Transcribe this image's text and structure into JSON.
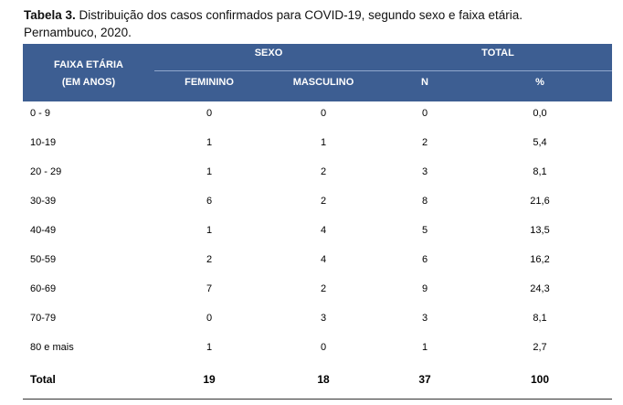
{
  "caption": {
    "label": "Tabela 3.",
    "text": " Distribuição dos casos confirmados para COVID-19, segundo sexo e faixa etária.",
    "line2": "Pernambuco, 2020."
  },
  "header": {
    "age_line1": "FAIXA ETÁRIA",
    "age_line2": "(EM ANOS)",
    "sexo": "SEXO",
    "total": "TOTAL",
    "feminino": "FEMININO",
    "masculino": "MASCULINO",
    "n": "N",
    "pct": "%"
  },
  "rows": [
    {
      "age": "0 - 9",
      "fem": "0",
      "masc": "0",
      "n": "0",
      "pct": "0,0"
    },
    {
      "age": "10-19",
      "fem": "1",
      "masc": "1",
      "n": "2",
      "pct": "5,4"
    },
    {
      "age": "20 - 29",
      "fem": "1",
      "masc": "2",
      "n": "3",
      "pct": "8,1"
    },
    {
      "age": "30-39",
      "fem": "6",
      "masc": "2",
      "n": "8",
      "pct": "21,6"
    },
    {
      "age": "40-49",
      "fem": "1",
      "masc": "4",
      "n": "5",
      "pct": "13,5"
    },
    {
      "age": "50-59",
      "fem": "2",
      "masc": "4",
      "n": "6",
      "pct": "16,2"
    },
    {
      "age": "60-69",
      "fem": "7",
      "masc": "2",
      "n": "9",
      "pct": "24,3"
    },
    {
      "age": "70-79",
      "fem": "0",
      "masc": "3",
      "n": "3",
      "pct": "8,1"
    },
    {
      "age": "80 e mais",
      "fem": "1",
      "masc": "0",
      "n": "1",
      "pct": "2,7"
    }
  ],
  "total": {
    "label": "Total",
    "fem": "19",
    "masc": "18",
    "n": "37",
    "pct": "100"
  },
  "colors": {
    "header_bg": "#3d5e92",
    "header_text": "#ffffff"
  }
}
